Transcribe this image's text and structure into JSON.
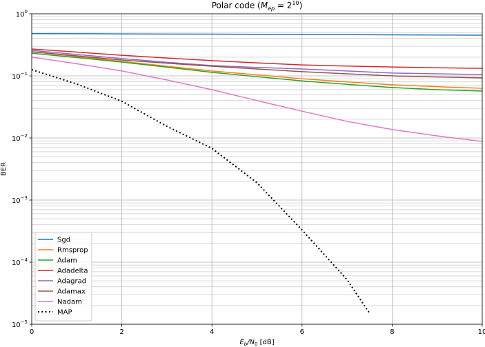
{
  "chart_data": {
    "type": "line",
    "title": [
      "Polar code (",
      "M",
      "ep",
      " = 2",
      "10",
      ")"
    ],
    "xlabel": [
      "E",
      "b",
      "/N",
      "0",
      " [dB]"
    ],
    "ylabel": "BER",
    "log_y": true,
    "grid": true,
    "minor_grid": true,
    "legend": "lower left",
    "xlim": [
      0,
      10
    ],
    "ylim": [
      1e-05,
      1
    ],
    "xticks": [
      0,
      2,
      4,
      6,
      8,
      10
    ],
    "yticks": [
      {
        "value": 1e-05,
        "label": [
          "10",
          "−5"
        ]
      },
      {
        "value": 0.0001,
        "label": [
          "10",
          "−4"
        ]
      },
      {
        "value": 0.001,
        "label": [
          "10",
          "−3"
        ]
      },
      {
        "value": 0.01,
        "label": [
          "10",
          "−2"
        ]
      },
      {
        "value": 0.1,
        "label": [
          "10",
          "−1"
        ]
      },
      {
        "value": 1,
        "label": [
          "10",
          "0"
        ]
      }
    ],
    "series": [
      {
        "name": "Sgd",
        "color": "#1f77b4",
        "style": "solid",
        "x": [
          0,
          1,
          2,
          3,
          4,
          5,
          6,
          7,
          8,
          9,
          10
        ],
        "values": [
          0.48,
          0.478,
          0.475,
          0.472,
          0.47,
          0.467,
          0.464,
          0.461,
          0.458,
          0.455,
          0.452
        ]
      },
      {
        "name": "Rmsprop",
        "color": "#ff7f0e",
        "style": "solid",
        "x": [
          0,
          1,
          2,
          3,
          4,
          5,
          6,
          7,
          8,
          9,
          10
        ],
        "values": [
          0.245,
          0.205,
          0.171,
          0.143,
          0.12,
          0.104,
          0.09,
          0.08,
          0.072,
          0.067,
          0.063
        ]
      },
      {
        "name": "Adam",
        "color": "#2ca02c",
        "style": "solid",
        "x": [
          0,
          1,
          2,
          3,
          4,
          5,
          6,
          7,
          8,
          9,
          10
        ],
        "values": [
          0.232,
          0.197,
          0.167,
          0.138,
          0.114,
          0.097,
          0.083,
          0.073,
          0.065,
          0.06,
          0.057
        ]
      },
      {
        "name": "Adadelta",
        "color": "#d62728",
        "style": "solid",
        "x": [
          0,
          1,
          2,
          3,
          4,
          5,
          6,
          7,
          8,
          9,
          10
        ],
        "values": [
          0.271,
          0.242,
          0.215,
          0.194,
          0.176,
          0.162,
          0.15,
          0.144,
          0.139,
          0.135,
          0.132
        ]
      },
      {
        "name": "Adagrad",
        "color": "#9467bd",
        "style": "solid",
        "x": [
          0,
          1,
          2,
          3,
          4,
          5,
          6,
          7,
          8,
          9,
          10
        ],
        "values": [
          0.258,
          0.221,
          0.19,
          0.166,
          0.147,
          0.137,
          0.129,
          0.12,
          0.111,
          0.108,
          0.105
        ]
      },
      {
        "name": "Adamax",
        "color": "#8c564b",
        "style": "solid",
        "x": [
          0,
          1,
          2,
          3,
          4,
          5,
          6,
          7,
          8,
          9,
          10
        ],
        "values": [
          0.245,
          0.21,
          0.18,
          0.16,
          0.143,
          0.129,
          0.117,
          0.108,
          0.1,
          0.096,
          0.093
        ]
      },
      {
        "name": "Nadam",
        "color": "#e377c2",
        "style": "solid",
        "x": [
          0,
          1,
          2,
          3,
          4,
          5,
          6,
          7,
          8,
          9,
          10
        ],
        "values": [
          0.2,
          0.157,
          0.12,
          0.086,
          0.06,
          0.04,
          0.027,
          0.0185,
          0.0137,
          0.0108,
          0.0088
        ]
      },
      {
        "name": "MAP",
        "color": "#000000",
        "style": "dotted",
        "x": [
          0,
          1,
          2,
          3,
          4,
          5,
          6,
          7,
          7.5
        ],
        "values": [
          0.126,
          0.074,
          0.039,
          0.0154,
          0.0068,
          0.0019,
          0.00033,
          5.2e-05,
          1.5e-05
        ]
      }
    ]
  }
}
